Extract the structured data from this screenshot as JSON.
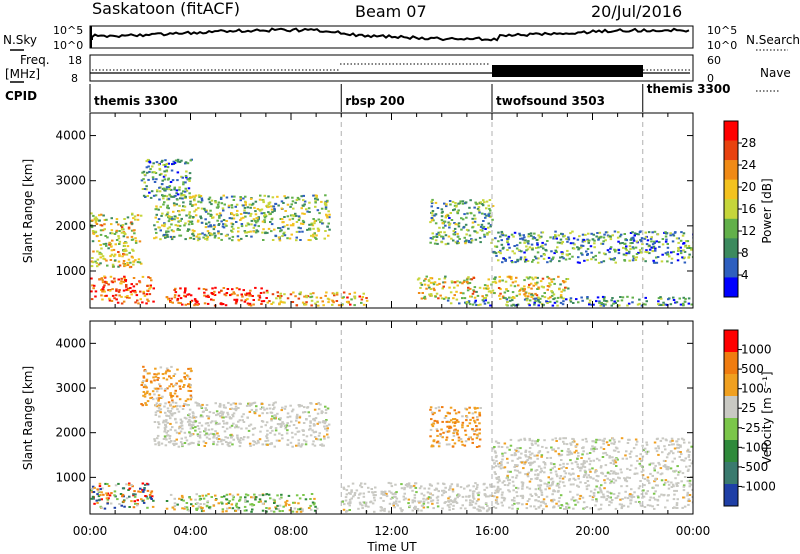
{
  "header": {
    "station": "Saskatoon (fitACF)",
    "beam": "Beam 07",
    "date": "20/Jul/2016"
  },
  "panels": {
    "nsky_label": "N.Sky",
    "nsearch_label": "N.Search",
    "nsky_ticks": [
      "10^5",
      "10^0"
    ],
    "nsearch_ticks": [
      "10^5",
      "10^0"
    ],
    "freq_label": "Freq.",
    "freq_unit": "[MHz]",
    "freq_ticks": [
      "18",
      "8"
    ],
    "nave_label": "Nave",
    "nave_ticks": [
      "60",
      "0"
    ],
    "cpid_label": "CPID",
    "cpid_entries": [
      {
        "label": "themis 3300",
        "start_hour": 0
      },
      {
        "label": "rbsp 200",
        "start_hour": 10
      },
      {
        "label": "twofsound 3503",
        "start_hour": 16
      },
      {
        "label": "themis 3300",
        "start_hour": 22
      }
    ]
  },
  "colorbars": {
    "power": {
      "title": "Power [dB]",
      "ticks": [
        "28",
        "24",
        "20",
        "16",
        "12",
        "8",
        "4"
      ],
      "colors": [
        "#0000ff",
        "#2e5fbf",
        "#3c8a5e",
        "#62b04a",
        "#c6d63b",
        "#f3c21f",
        "#f08a16",
        "#e8420f",
        "#ff0000"
      ]
    },
    "velocity": {
      "title": "Velocity [m s⁻¹]",
      "ticks": [
        "1000",
        "500",
        "100",
        "25",
        "-25",
        "-100",
        "-500",
        "-1000"
      ],
      "colors": [
        "#1f3fa6",
        "#3a7a6e",
        "#2f8a3b",
        "#7bc64a",
        "#c9c9c3",
        "#f0a020",
        "#f07c10",
        "#ff0000"
      ]
    }
  },
  "axes": {
    "y_label": "Slant Range [km]",
    "x_label": "Time UT",
    "y_ticks": [
      "1000",
      "2000",
      "3000",
      "4000"
    ],
    "x_ticks": [
      "00:00",
      "04:00",
      "08:00",
      "12:00",
      "16:00",
      "20:00",
      "00:00"
    ]
  },
  "chart_data": [
    {
      "type": "heatmap",
      "name": "power",
      "x_range_hours": [
        0,
        24
      ],
      "y_range_km": [
        180,
        4500
      ],
      "z_range_db": [
        0,
        32
      ],
      "xlabel": "Time UT",
      "ylabel": "Slant Range [km]",
      "regions": [
        {
          "t0": 0.0,
          "t1": 2.5,
          "r0": 300,
          "r1": 900,
          "level": 0.85
        },
        {
          "t0": 0.0,
          "t1": 2.0,
          "r0": 1100,
          "r1": 2300,
          "level": 0.55
        },
        {
          "t0": 2.0,
          "t1": 4.0,
          "r0": 2600,
          "r1": 3500,
          "level": 0.3
        },
        {
          "t0": 2.5,
          "t1": 9.5,
          "r0": 1700,
          "r1": 2700,
          "level": 0.4
        },
        {
          "t0": 3.0,
          "t1": 7.0,
          "r0": 250,
          "r1": 650,
          "level": 0.9
        },
        {
          "t0": 7.0,
          "t1": 11.0,
          "r0": 250,
          "r1": 550,
          "level": 0.65
        },
        {
          "t0": 13.0,
          "t1": 19.0,
          "r0": 400,
          "r1": 900,
          "level": 0.55
        },
        {
          "t0": 14.0,
          "t1": 24.0,
          "r0": 250,
          "r1": 450,
          "level": 0.3
        },
        {
          "t0": 16.0,
          "t1": 24.0,
          "r0": 1200,
          "r1": 1900,
          "level": 0.3
        },
        {
          "t0": 13.5,
          "t1": 16.0,
          "r0": 1600,
          "r1": 2600,
          "level": 0.35
        }
      ]
    },
    {
      "type": "heatmap",
      "name": "velocity",
      "x_range_hours": [
        0,
        24
      ],
      "y_range_km": [
        180,
        4500
      ],
      "z_range_ms": [
        -1000,
        1000
      ],
      "xlabel": "Time UT",
      "ylabel": "Slant Range [km]",
      "regions": [
        {
          "t0": 0.0,
          "t1": 2.5,
          "r0": 300,
          "r1": 900,
          "class": "mixed"
        },
        {
          "t0": 2.0,
          "t1": 4.0,
          "r0": 2600,
          "r1": 3500,
          "class": "negative"
        },
        {
          "t0": 2.5,
          "t1": 9.5,
          "r0": 1700,
          "r1": 2700,
          "class": "low"
        },
        {
          "t0": 3.0,
          "t1": 9.0,
          "r0": 250,
          "r1": 650,
          "class": "positive"
        },
        {
          "t0": 13.5,
          "t1": 15.5,
          "r0": 1700,
          "r1": 2600,
          "class": "negative"
        },
        {
          "t0": 16.0,
          "t1": 24.0,
          "r0": 300,
          "r1": 1900,
          "class": "low"
        },
        {
          "t0": 10.0,
          "t1": 16.0,
          "r0": 250,
          "r1": 900,
          "class": "low"
        }
      ]
    }
  ]
}
